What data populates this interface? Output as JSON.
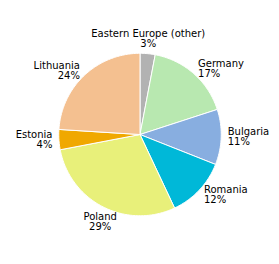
{
  "chart_data": {
    "type": "pie",
    "categories": [
      "Eastern Europe (other)",
      "Germany",
      "Bulgaria",
      "Romania",
      "Poland",
      "Estonia",
      "Lithuania"
    ],
    "values": [
      3,
      17,
      11,
      12,
      29,
      4,
      24
    ],
    "value_labels": [
      "3%",
      "17%",
      "11%",
      "12%",
      "29%",
      "4%",
      "24%"
    ],
    "colors": [
      "#b2b2b2",
      "#b8e8b0",
      "#88aee0",
      "#00b8d8",
      "#e8f07a",
      "#f0a800",
      "#f4c090"
    ],
    "data_labels": true
  }
}
